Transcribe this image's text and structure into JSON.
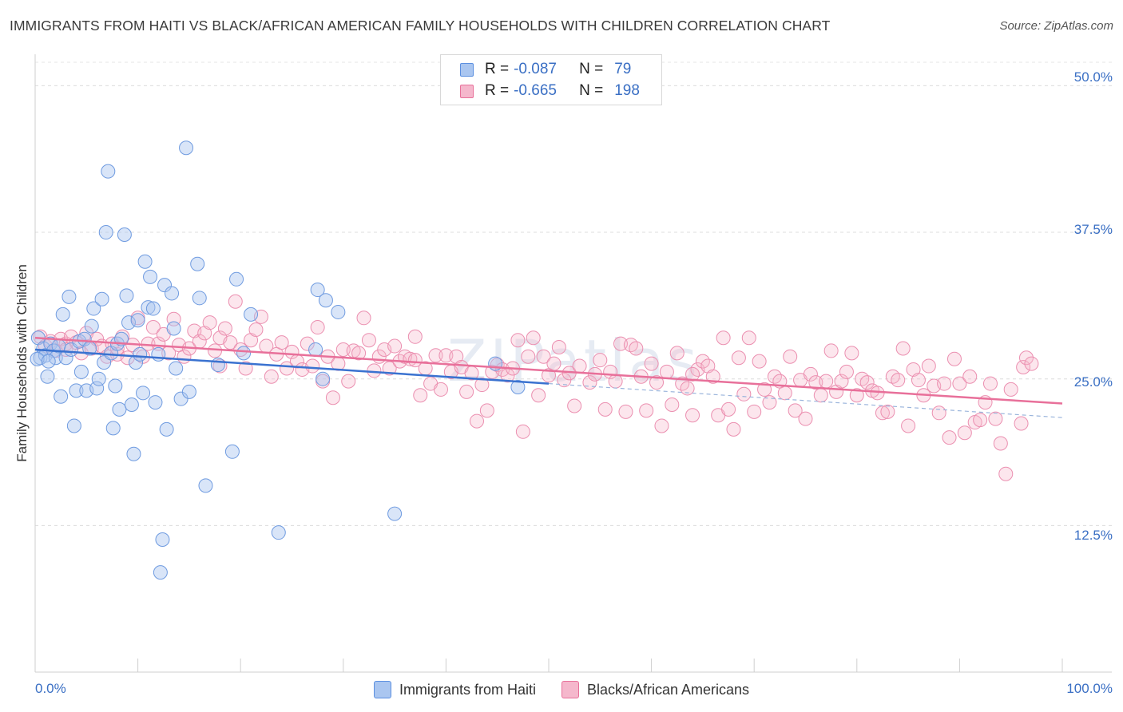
{
  "title": "IMMIGRANTS FROM HAITI VS BLACK/AFRICAN AMERICAN FAMILY HOUSEHOLDS WITH CHILDREN CORRELATION CHART",
  "source": "Source: ZipAtlas.com",
  "watermark": "ZIPatlas",
  "colors": {
    "blue": "#5b8fe0",
    "blue_fill": "#aac6f0",
    "pink": "#e8709a",
    "pink_fill": "#f5b7cc",
    "tick_text": "#3a6fc4"
  },
  "legend": {
    "series": [
      {
        "r_label": "R =",
        "r_value": "-0.087",
        "n_label": "N =",
        "n_value": "79"
      },
      {
        "r_label": "R =",
        "r_value": "-0.665",
        "n_label": "N =",
        "n_value": "198"
      }
    ]
  },
  "bottom_legend": [
    "Immigrants from Haiti",
    "Blacks/African Americans"
  ],
  "chart_data": {
    "type": "scatter",
    "title": "IMMIGRANTS FROM HAITI VS BLACK/AFRICAN AMERICAN FAMILY HOUSEHOLDS WITH CHILDREN CORRELATION CHART",
    "xlabel": "",
    "ylabel": "Family Households with Children",
    "xlim": [
      0,
      100
    ],
    "ylim": [
      0,
      52
    ],
    "x_tick_labels": [
      "0.0%",
      "100.0%"
    ],
    "y_ticks": [
      12.5,
      25.0,
      37.5,
      50.0
    ],
    "y_tick_labels": [
      "12.5%",
      "25.0%",
      "37.5%",
      "50.0%"
    ],
    "grid": true,
    "series": [
      {
        "name": "Immigrants from Haiti",
        "color": "#5b8fe0",
        "trend": {
          "x": [
            0,
            50
          ],
          "y": [
            27.5,
            24.6
          ]
        },
        "trend_extension": {
          "x": [
            50,
            100
          ],
          "y": [
            24.6,
            21.7
          ]
        },
        "points": [
          [
            0.3,
            28.5
          ],
          [
            0.5,
            26.8
          ],
          [
            0.8,
            27.6
          ],
          [
            1.0,
            27.0
          ],
          [
            1.2,
            25.2
          ],
          [
            1.5,
            28.0
          ],
          [
            1.8,
            27.4
          ],
          [
            2.0,
            26.8
          ],
          [
            2.3,
            27.8
          ],
          [
            2.5,
            23.5
          ],
          [
            2.7,
            30.5
          ],
          [
            3.0,
            26.8
          ],
          [
            3.3,
            32.0
          ],
          [
            3.5,
            27.5
          ],
          [
            3.8,
            21.0
          ],
          [
            4.0,
            24.0
          ],
          [
            4.3,
            28.2
          ],
          [
            4.5,
            25.6
          ],
          [
            4.8,
            28.4
          ],
          [
            5.0,
            24.0
          ],
          [
            5.3,
            27.6
          ],
          [
            5.5,
            29.5
          ],
          [
            5.7,
            31.0
          ],
          [
            6.0,
            24.2
          ],
          [
            6.2,
            25.0
          ],
          [
            6.5,
            31.8
          ],
          [
            6.7,
            26.4
          ],
          [
            6.9,
            37.5
          ],
          [
            7.1,
            42.7
          ],
          [
            7.4,
            27.2
          ],
          [
            7.6,
            20.8
          ],
          [
            7.8,
            24.4
          ],
          [
            8.0,
            28.0
          ],
          [
            8.2,
            22.4
          ],
          [
            8.4,
            28.4
          ],
          [
            8.7,
            37.3
          ],
          [
            8.9,
            32.1
          ],
          [
            9.1,
            29.8
          ],
          [
            9.4,
            22.8
          ],
          [
            9.6,
            18.6
          ],
          [
            9.8,
            26.4
          ],
          [
            10.0,
            30.0
          ],
          [
            10.2,
            27.1
          ],
          [
            10.5,
            23.8
          ],
          [
            10.7,
            35.0
          ],
          [
            11.0,
            31.1
          ],
          [
            11.2,
            33.7
          ],
          [
            11.5,
            31.0
          ],
          [
            11.7,
            23.0
          ],
          [
            12.0,
            27.1
          ],
          [
            12.2,
            8.5
          ],
          [
            12.4,
            11.3
          ],
          [
            12.6,
            33.0
          ],
          [
            12.8,
            20.7
          ],
          [
            13.3,
            32.3
          ],
          [
            13.5,
            29.3
          ],
          [
            13.7,
            25.9
          ],
          [
            14.2,
            23.3
          ],
          [
            14.7,
            44.7
          ],
          [
            15.0,
            23.9
          ],
          [
            15.8,
            34.8
          ],
          [
            16.0,
            31.9
          ],
          [
            16.6,
            15.9
          ],
          [
            17.8,
            26.2
          ],
          [
            19.2,
            18.8
          ],
          [
            19.6,
            33.5
          ],
          [
            20.3,
            27.2
          ],
          [
            21.0,
            30.5
          ],
          [
            23.7,
            11.9
          ],
          [
            27.3,
            27.5
          ],
          [
            27.5,
            32.6
          ],
          [
            28.0,
            25.0
          ],
          [
            28.3,
            31.7
          ],
          [
            29.5,
            30.7
          ],
          [
            35.0,
            13.5
          ],
          [
            44.8,
            26.3
          ],
          [
            47.0,
            24.3
          ],
          [
            0.2,
            26.7
          ],
          [
            1.3,
            26.5
          ]
        ]
      },
      {
        "name": "Blacks/African Americans",
        "color": "#e8709a",
        "trend": {
          "x": [
            0,
            100
          ],
          "y": [
            28.5,
            22.9
          ]
        },
        "points": [
          [
            0.5,
            28.6
          ],
          [
            1.0,
            27.8
          ],
          [
            1.5,
            28.2
          ],
          [
            2.0,
            27.4
          ],
          [
            2.5,
            28.4
          ],
          [
            3.0,
            28.0
          ],
          [
            3.5,
            28.6
          ],
          [
            4.0,
            28.1
          ],
          [
            4.5,
            27.2
          ],
          [
            5.0,
            28.9
          ],
          [
            5.5,
            27.6
          ],
          [
            6.0,
            28.4
          ],
          [
            6.5,
            27.8
          ],
          [
            7.0,
            26.9
          ],
          [
            7.5,
            28.0
          ],
          [
            8.0,
            27.1
          ],
          [
            8.5,
            28.6
          ],
          [
            9.0,
            26.8
          ],
          [
            9.5,
            27.9
          ],
          [
            10.0,
            30.2
          ],
          [
            10.5,
            26.9
          ],
          [
            11.0,
            28.0
          ],
          [
            11.5,
            29.4
          ],
          [
            12.0,
            28.0
          ],
          [
            12.5,
            28.8
          ],
          [
            13.0,
            27.2
          ],
          [
            13.5,
            30.1
          ],
          [
            14.0,
            27.9
          ],
          [
            14.5,
            26.9
          ],
          [
            15.0,
            27.6
          ],
          [
            15.5,
            29.1
          ],
          [
            16.0,
            28.2
          ],
          [
            16.5,
            28.9
          ],
          [
            17.0,
            29.8
          ],
          [
            17.5,
            27.4
          ],
          [
            18.0,
            28.5
          ],
          [
            18.5,
            29.3
          ],
          [
            19.0,
            28.1
          ],
          [
            19.5,
            31.6
          ],
          [
            20.0,
            27.5
          ],
          [
            20.5,
            25.9
          ],
          [
            21.0,
            28.3
          ],
          [
            21.5,
            29.2
          ],
          [
            22.0,
            30.3
          ],
          [
            22.5,
            27.8
          ],
          [
            23.0,
            25.2
          ],
          [
            23.5,
            27.1
          ],
          [
            24.0,
            28.1
          ],
          [
            24.5,
            25.9
          ],
          [
            25.0,
            27.3
          ],
          [
            25.5,
            26.5
          ],
          [
            26.0,
            25.8
          ],
          [
            26.5,
            28.0
          ],
          [
            27.0,
            26.1
          ],
          [
            27.5,
            29.4
          ],
          [
            28.0,
            24.8
          ],
          [
            28.5,
            26.9
          ],
          [
            29.0,
            23.4
          ],
          [
            29.5,
            26.3
          ],
          [
            30.0,
            27.5
          ],
          [
            30.5,
            24.8
          ],
          [
            31.0,
            27.4
          ],
          [
            31.5,
            27.2
          ],
          [
            32.0,
            30.2
          ],
          [
            32.5,
            28.3
          ],
          [
            33.0,
            25.7
          ],
          [
            33.5,
            26.9
          ],
          [
            34.0,
            27.5
          ],
          [
            34.5,
            25.9
          ],
          [
            35.0,
            27.8
          ],
          [
            35.5,
            26.5
          ],
          [
            36.0,
            26.9
          ],
          [
            36.5,
            26.7
          ],
          [
            37.0,
            28.6
          ],
          [
            37.5,
            23.6
          ],
          [
            38.0,
            25.9
          ],
          [
            38.5,
            24.6
          ],
          [
            39.0,
            27.0
          ],
          [
            39.5,
            24.1
          ],
          [
            40.0,
            27.0
          ],
          [
            40.5,
            25.6
          ],
          [
            41.0,
            26.9
          ],
          [
            41.5,
            26.0
          ],
          [
            42.0,
            23.9
          ],
          [
            42.5,
            25.5
          ],
          [
            43.0,
            21.4
          ],
          [
            43.5,
            24.5
          ],
          [
            44.0,
            22.3
          ],
          [
            44.5,
            25.6
          ],
          [
            45.0,
            26.2
          ],
          [
            45.5,
            25.8
          ],
          [
            46.0,
            25.3
          ],
          [
            46.5,
            25.9
          ],
          [
            47.0,
            28.3
          ],
          [
            47.5,
            20.5
          ],
          [
            48.0,
            26.9
          ],
          [
            48.5,
            28.5
          ],
          [
            49.0,
            23.6
          ],
          [
            49.5,
            26.9
          ],
          [
            50.0,
            25.3
          ],
          [
            50.5,
            26.3
          ],
          [
            51.0,
            27.7
          ],
          [
            51.5,
            24.9
          ],
          [
            52.0,
            25.5
          ],
          [
            52.5,
            22.7
          ],
          [
            53.0,
            26.1
          ],
          [
            54.0,
            24.7
          ],
          [
            54.5,
            25.4
          ],
          [
            55.0,
            26.6
          ],
          [
            55.5,
            22.4
          ],
          [
            56.0,
            25.6
          ],
          [
            56.5,
            24.8
          ],
          [
            57.0,
            28.0
          ],
          [
            57.5,
            22.2
          ],
          [
            58.0,
            27.9
          ],
          [
            58.5,
            27.6
          ],
          [
            59.0,
            25.2
          ],
          [
            59.5,
            22.3
          ],
          [
            60.0,
            26.3
          ],
          [
            60.5,
            24.7
          ],
          [
            61.0,
            21.0
          ],
          [
            61.5,
            25.6
          ],
          [
            62.0,
            22.8
          ],
          [
            62.5,
            27.2
          ],
          [
            63.0,
            24.6
          ],
          [
            63.5,
            24.2
          ],
          [
            64.0,
            21.9
          ],
          [
            64.5,
            25.8
          ],
          [
            65.0,
            26.5
          ],
          [
            65.5,
            26.1
          ],
          [
            66.0,
            25.2
          ],
          [
            66.5,
            21.9
          ],
          [
            67.0,
            28.5
          ],
          [
            67.5,
            22.4
          ],
          [
            68.0,
            20.7
          ],
          [
            68.5,
            26.8
          ],
          [
            69.0,
            23.7
          ],
          [
            69.5,
            28.5
          ],
          [
            70.0,
            22.2
          ],
          [
            70.5,
            26.5
          ],
          [
            71.0,
            24.1
          ],
          [
            71.5,
            23.0
          ],
          [
            72.0,
            25.2
          ],
          [
            72.5,
            24.8
          ],
          [
            73.0,
            23.8
          ],
          [
            73.5,
            26.9
          ],
          [
            74.0,
            22.3
          ],
          [
            74.5,
            24.9
          ],
          [
            75.0,
            21.6
          ],
          [
            75.5,
            25.4
          ],
          [
            76.0,
            24.7
          ],
          [
            76.5,
            23.6
          ],
          [
            77.0,
            24.8
          ],
          [
            77.5,
            27.4
          ],
          [
            78.0,
            23.9
          ],
          [
            78.5,
            24.8
          ],
          [
            79.0,
            25.6
          ],
          [
            79.5,
            27.2
          ],
          [
            80.0,
            23.6
          ],
          [
            80.5,
            25.0
          ],
          [
            81.0,
            24.7
          ],
          [
            81.5,
            24.0
          ],
          [
            82.0,
            23.8
          ],
          [
            82.5,
            22.1
          ],
          [
            83.0,
            22.2
          ],
          [
            83.5,
            25.2
          ],
          [
            84.0,
            24.9
          ],
          [
            84.5,
            27.6
          ],
          [
            85.0,
            21.0
          ],
          [
            85.5,
            25.8
          ],
          [
            86.0,
            24.9
          ],
          [
            86.5,
            23.6
          ],
          [
            87.0,
            26.1
          ],
          [
            87.5,
            24.4
          ],
          [
            88.0,
            22.1
          ],
          [
            88.5,
            24.6
          ],
          [
            89.0,
            20.0
          ],
          [
            89.5,
            26.7
          ],
          [
            90.0,
            24.6
          ],
          [
            90.5,
            20.4
          ],
          [
            91.0,
            25.2
          ],
          [
            91.5,
            21.3
          ],
          [
            92.0,
            21.5
          ],
          [
            92.5,
            23.0
          ],
          [
            93.0,
            24.6
          ],
          [
            93.5,
            21.6
          ],
          [
            94.0,
            19.5
          ],
          [
            94.5,
            16.9
          ],
          [
            95.0,
            24.1
          ],
          [
            96.0,
            21.2
          ],
          [
            96.2,
            26.0
          ],
          [
            96.5,
            26.8
          ],
          [
            97.0,
            26.3
          ],
          [
            64.0,
            25.4
          ],
          [
            37.0,
            26.6
          ],
          [
            18.0,
            26.1
          ],
          [
            8.0,
            27.6
          ],
          [
            3.0,
            27.5
          ]
        ]
      }
    ]
  }
}
